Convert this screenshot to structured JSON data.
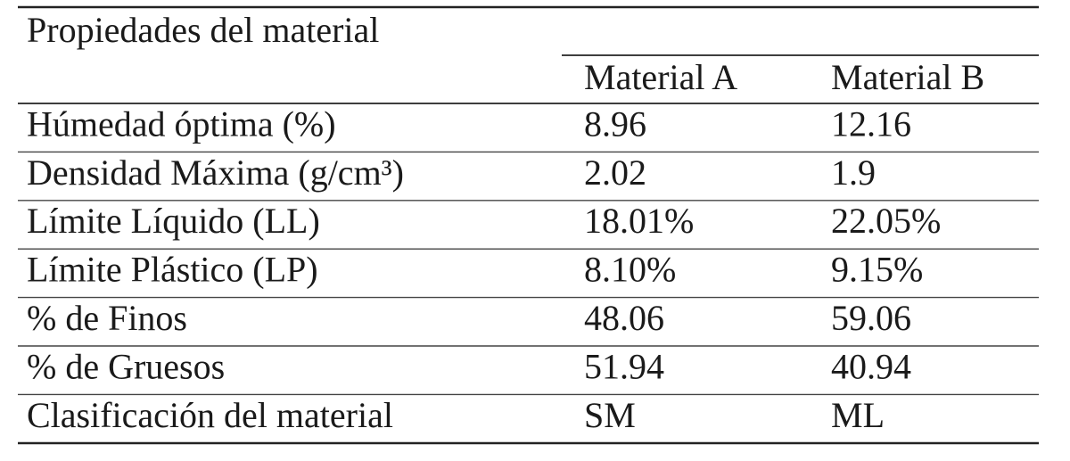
{
  "table": {
    "header": {
      "title": "Propiedades del material",
      "columns": [
        "Material A",
        "Material B"
      ]
    },
    "rows": [
      [
        "Húmedad óptima (%)",
        "8.96",
        "12.16"
      ],
      [
        "Densidad Máxima (g/cm³)",
        "2.02",
        "1.9"
      ],
      [
        "Límite Líquido (LL)",
        "18.01%",
        "22.05%"
      ],
      [
        "Límite Plástico (LP)",
        "8.10%",
        "9.15%"
      ],
      [
        "% de Finos",
        "48.06",
        "59.06"
      ],
      [
        "% de Gruesos",
        "51.94",
        "40.94"
      ],
      [
        "Clasificación del material",
        "SM",
        "ML"
      ]
    ]
  }
}
